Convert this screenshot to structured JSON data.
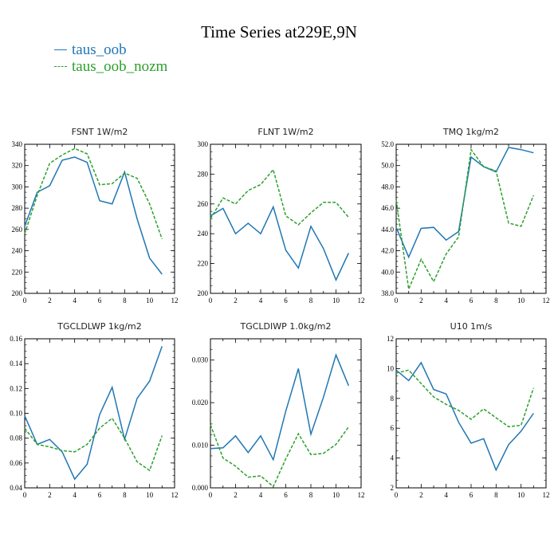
{
  "page_title": "Time Series at229E,9N",
  "legend": [
    {
      "label": "taus_oob",
      "color": "#1f77b4",
      "dash": false
    },
    {
      "label": "taus_oob_nozm",
      "color": "#2ca02c",
      "dash": true
    }
  ],
  "chart_data": [
    {
      "type": "line",
      "title": "FSNT 1W/m2",
      "xlim": [
        0,
        12
      ],
      "ylim": [
        200,
        340
      ],
      "xticks": [
        0,
        2,
        4,
        6,
        8,
        10,
        12
      ],
      "yticks": [
        200,
        220,
        240,
        260,
        280,
        300,
        320,
        340
      ],
      "ytick_labels": [
        "200",
        "220",
        "240",
        "260",
        "280",
        "300",
        "320",
        "340"
      ],
      "x": [
        0,
        1,
        2,
        3,
        4,
        5,
        6,
        7,
        8,
        9,
        10,
        11
      ],
      "series": [
        {
          "name": "taus_oob",
          "values": [
            263,
            295,
            301,
            325,
            328,
            323,
            287,
            284,
            314,
            270,
            233,
            218
          ]
        },
        {
          "name": "taus_oob_nozm",
          "values": [
            256,
            292,
            322,
            330,
            336,
            331,
            302,
            303,
            313,
            308,
            284,
            251
          ]
        }
      ]
    },
    {
      "type": "line",
      "title": "FLNT 1W/m2",
      "xlim": [
        0,
        12
      ],
      "ylim": [
        200,
        300
      ],
      "xticks": [
        0,
        2,
        4,
        6,
        8,
        10,
        12
      ],
      "yticks": [
        200,
        220,
        240,
        260,
        280,
        300
      ],
      "ytick_labels": [
        "200",
        "220",
        "240",
        "260",
        "280",
        "300"
      ],
      "x": [
        0,
        1,
        2,
        3,
        4,
        5,
        6,
        7,
        8,
        9,
        10,
        11
      ],
      "series": [
        {
          "name": "taus_oob",
          "values": [
            252,
            257,
            240,
            247,
            240,
            258,
            229,
            217,
            245,
            230,
            209,
            227
          ]
        },
        {
          "name": "taus_oob_nozm",
          "values": [
            250,
            264,
            260,
            269,
            273,
            283,
            252,
            246,
            254,
            261,
            261,
            251
          ]
        }
      ]
    },
    {
      "type": "line",
      "title": "TMQ 1kg/m2",
      "xlim": [
        0,
        12
      ],
      "ylim": [
        38,
        52
      ],
      "xticks": [
        0,
        2,
        4,
        6,
        8,
        10,
        12
      ],
      "yticks": [
        38,
        40,
        42,
        44,
        46,
        48,
        50,
        52
      ],
      "ytick_labels": [
        "38.0",
        "40.0",
        "42.0",
        "44.0",
        "46.0",
        "48.0",
        "50.0",
        "52.0"
      ],
      "x": [
        0,
        1,
        2,
        3,
        4,
        5,
        6,
        7,
        8,
        9,
        10,
        11
      ],
      "series": [
        {
          "name": "taus_oob",
          "values": [
            44.2,
            41.4,
            44.1,
            44.2,
            43.0,
            43.8,
            50.8,
            49.9,
            49.4,
            51.7,
            51.5,
            51.2
          ]
        },
        {
          "name": "taus_oob_nozm",
          "values": [
            46.8,
            38.4,
            41.2,
            39.1,
            41.7,
            43.3,
            51.5,
            49.9,
            49.5,
            44.6,
            44.3,
            47.2
          ]
        }
      ]
    },
    {
      "type": "line",
      "title": "TGCLDLWP 1kg/m2",
      "xlim": [
        0,
        12
      ],
      "ylim": [
        0.04,
        0.16
      ],
      "xticks": [
        0,
        2,
        4,
        6,
        8,
        10,
        12
      ],
      "yticks": [
        0.04,
        0.06,
        0.08,
        0.1,
        0.12,
        0.14,
        0.16
      ],
      "ytick_labels": [
        "0.04",
        "0.06",
        "0.08",
        "0.10",
        "0.12",
        "0.14",
        "0.16"
      ],
      "x": [
        0,
        1,
        2,
        3,
        4,
        5,
        6,
        7,
        8,
        9,
        10,
        11
      ],
      "series": [
        {
          "name": "taus_oob",
          "values": [
            0.098,
            0.075,
            0.079,
            0.069,
            0.047,
            0.059,
            0.099,
            0.121,
            0.079,
            0.112,
            0.126,
            0.154
          ]
        },
        {
          "name": "taus_oob_nozm",
          "values": [
            0.088,
            0.075,
            0.073,
            0.07,
            0.069,
            0.075,
            0.088,
            0.096,
            0.08,
            0.061,
            0.054,
            0.082
          ]
        }
      ]
    },
    {
      "type": "line",
      "title": "TGCLDIWP 1.0kg/m2",
      "xlim": [
        0,
        12
      ],
      "ylim": [
        0,
        0.035
      ],
      "xticks": [
        0,
        2,
        4,
        6,
        8,
        10,
        12
      ],
      "yticks": [
        0,
        0.01,
        0.02,
        0.03
      ],
      "ytick_labels": [
        "0.000",
        "0.010",
        "0.020",
        "0.030"
      ],
      "x": [
        0,
        1,
        2,
        3,
        4,
        5,
        6,
        7,
        8,
        9,
        10,
        11
      ],
      "series": [
        {
          "name": "taus_oob",
          "values": [
            0.0092,
            0.0094,
            0.0122,
            0.0083,
            0.0122,
            0.0066,
            0.018,
            0.028,
            0.0126,
            0.0213,
            0.0312,
            0.024
          ]
        },
        {
          "name": "taus_oob_nozm",
          "values": [
            0.0148,
            0.007,
            0.0051,
            0.0025,
            0.0028,
            0.0003,
            0.0068,
            0.0127,
            0.0078,
            0.0081,
            0.0102,
            0.0143
          ]
        }
      ]
    },
    {
      "type": "line",
      "title": "U10 1m/s",
      "xlim": [
        0,
        12
      ],
      "ylim": [
        2,
        12
      ],
      "xticks": [
        0,
        2,
        4,
        6,
        8,
        10,
        12
      ],
      "yticks": [
        2,
        4,
        6,
        8,
        10,
        12
      ],
      "ytick_labels": [
        "2",
        "4",
        "6",
        "8",
        "10",
        "12"
      ],
      "x": [
        0,
        1,
        2,
        3,
        4,
        5,
        6,
        7,
        8,
        9,
        10,
        11
      ],
      "series": [
        {
          "name": "taus_oob",
          "values": [
            9.9,
            9.2,
            10.4,
            8.6,
            8.3,
            6.4,
            5.0,
            5.3,
            3.2,
            4.9,
            5.8,
            7.0
          ]
        },
        {
          "name": "taus_oob_nozm",
          "values": [
            9.7,
            9.9,
            9.0,
            8.1,
            7.6,
            7.2,
            6.6,
            7.3,
            6.7,
            6.1,
            6.2,
            8.7
          ]
        }
      ]
    }
  ]
}
